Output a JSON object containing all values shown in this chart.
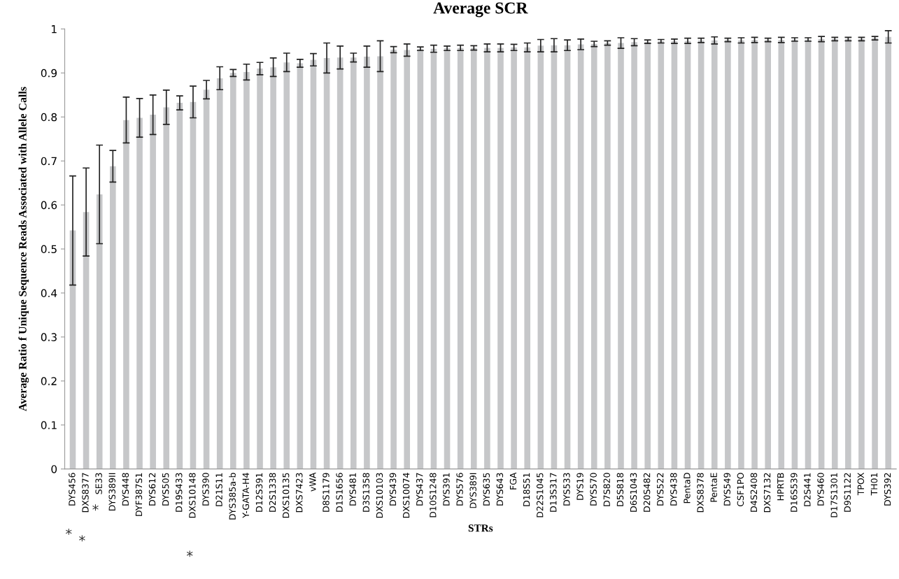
{
  "chart_data": {
    "type": "bar",
    "title": "Average SCR",
    "xlabel": "STRs",
    "ylabel": "Average Ratio f Unique Sequence Reads Associated with Allele Calls",
    "categories": [
      "DYS456",
      "DXS8377",
      "SE33",
      "DYS389II",
      "DYS448",
      "DYF387S1",
      "DYS612",
      "DYS505",
      "D19S433",
      "DXS10148",
      "DYS390",
      "D21S11",
      "DYS385a-b",
      "Y-GATA-H4",
      "D12S391",
      "D2S1338",
      "DXS10135",
      "DXS7423",
      "vWA",
      "D8S1179",
      "D1S1656",
      "DYS481",
      "D3S1358",
      "DXS10103",
      "DYS439",
      "DXS10074",
      "DYS437",
      "D10S1248",
      "DYS391",
      "DYS576",
      "DYS389I",
      "DYS635",
      "DYS643",
      "FGA",
      "D18S51",
      "D22S1045",
      "D13S317",
      "DYS533",
      "DYS19",
      "DYS570",
      "D7S820",
      "D5S818",
      "D6S1043",
      "D20S482",
      "DYS522",
      "DYS438",
      "PentaD",
      "DXS8378",
      "PentaE",
      "DYS549",
      "CSF1PO",
      "D4S2408",
      "DXS7132",
      "HPRTB",
      "D16S539",
      "D2S441",
      "DYS460",
      "D17S1301",
      "D9S1122",
      "TPOX",
      "TH01",
      "DYS392"
    ],
    "values": [
      0.542,
      0.584,
      0.624,
      0.688,
      0.793,
      0.798,
      0.805,
      0.822,
      0.832,
      0.834,
      0.862,
      0.888,
      0.9,
      0.902,
      0.91,
      0.913,
      0.924,
      0.922,
      0.93,
      0.934,
      0.935,
      0.935,
      0.937,
      0.938,
      0.953,
      0.952,
      0.955,
      0.955,
      0.956,
      0.957,
      0.957,
      0.957,
      0.957,
      0.958,
      0.958,
      0.962,
      0.963,
      0.963,
      0.965,
      0.966,
      0.968,
      0.968,
      0.97,
      0.971,
      0.972,
      0.972,
      0.973,
      0.974,
      0.974,
      0.975,
      0.974,
      0.975,
      0.975,
      0.975,
      0.976,
      0.976,
      0.977,
      0.977,
      0.977,
      0.977,
      0.979,
      0.982
    ],
    "errors": [
      0.124,
      0.1,
      0.112,
      0.036,
      0.052,
      0.044,
      0.045,
      0.039,
      0.016,
      0.036,
      0.021,
      0.026,
      0.008,
      0.018,
      0.014,
      0.021,
      0.021,
      0.009,
      0.014,
      0.034,
      0.026,
      0.01,
      0.024,
      0.035,
      0.007,
      0.014,
      0.004,
      0.008,
      0.005,
      0.006,
      0.005,
      0.009,
      0.009,
      0.007,
      0.01,
      0.014,
      0.015,
      0.012,
      0.012,
      0.006,
      0.005,
      0.012,
      0.008,
      0.004,
      0.004,
      0.005,
      0.006,
      0.005,
      0.008,
      0.004,
      0.006,
      0.006,
      0.004,
      0.006,
      0.004,
      0.004,
      0.006,
      0.004,
      0.004,
      0.004,
      0.004,
      0.014
    ],
    "color": "#c6c7c9",
    "ylim": [
      0,
      1
    ],
    "yticks": [
      0,
      0.1,
      0.2,
      0.3,
      0.4,
      0.5,
      0.6,
      0.7,
      0.8,
      0.9,
      1
    ],
    "grid": false,
    "annotations": [
      "*",
      "*",
      "*",
      "*"
    ]
  }
}
